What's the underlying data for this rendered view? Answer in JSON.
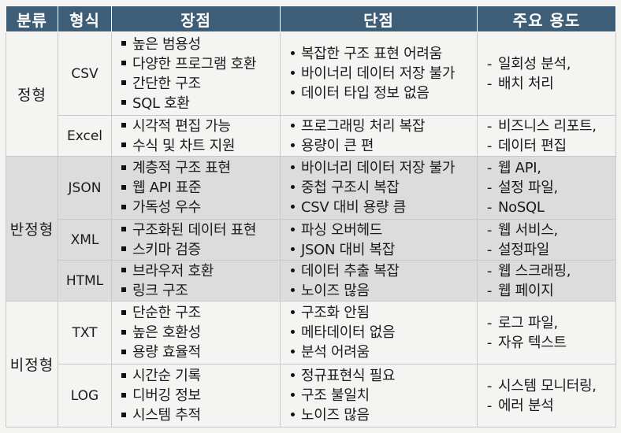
{
  "header": {
    "category": "분류",
    "format": "형식",
    "pros": "장점",
    "cons": "단점",
    "uses": "주요 용도"
  },
  "rows": [
    {
      "category": "정형",
      "format": "CSV",
      "pros": [
        "높은 범용성",
        "다양한 프로그램 호환",
        "간단한 구조",
        "SQL 호환"
      ],
      "cons": [
        "복잡한 구조 표현 어려움",
        "바이너리 데이터 저장 불가",
        "데이터 타입 정보 없음"
      ],
      "uses": [
        "일회성 분석,",
        "배치 처리"
      ]
    },
    {
      "category": "",
      "format": "Excel",
      "pros": [
        "시각적 편집 가능",
        "수식 및 차트 지원"
      ],
      "cons": [
        "프로그래밍 처리 복잡",
        "용량이 큰 편"
      ],
      "uses": [
        "비즈니스 리포트,",
        "데이터 편집"
      ]
    },
    {
      "category": "반정형",
      "format": "JSON",
      "pros": [
        "계층적 구조 표현",
        "웹 API 표준",
        "가독성 우수"
      ],
      "cons": [
        "바이너리 데이터 저장 불가",
        "중첩 구조시 복잡",
        "CSV 대비 용량 큼"
      ],
      "uses": [
        "웹 API,",
        "설정 파일,",
        "NoSQL"
      ]
    },
    {
      "category": "",
      "format": "XML",
      "pros": [
        "구조화된 데이터 표현",
        "스키마 검증"
      ],
      "cons": [
        "파싱 오버헤드",
        "JSON 대비 복잡"
      ],
      "uses": [
        "웹 서비스,",
        "설정파일"
      ]
    },
    {
      "category": "",
      "format": "HTML",
      "pros": [
        "브라우저 호환",
        "링크 구조"
      ],
      "cons": [
        "데이터 추출 복잡",
        "노이즈 많음"
      ],
      "uses": [
        "웹 스크래핑,",
        "웹 페이지"
      ]
    },
    {
      "category": "비정형",
      "format": "TXT",
      "pros": [
        "단순한 구조",
        "높은 호환성",
        "용량 효율적"
      ],
      "cons": [
        "구조화 안됨",
        "메타데이터 없음",
        "분석 어려움"
      ],
      "uses": [
        "로그 파일,",
        "자유 텍스트"
      ]
    },
    {
      "category": "",
      "format": "LOG",
      "pros": [
        "시간순 기록",
        "디버깅 정보",
        "시스템 추적"
      ],
      "cons": [
        "정규표현식 필요",
        "구조 불일치",
        "노이즈 많음"
      ],
      "uses": [
        "시스템 모니터링,",
        "에러 분석"
      ]
    }
  ]
}
